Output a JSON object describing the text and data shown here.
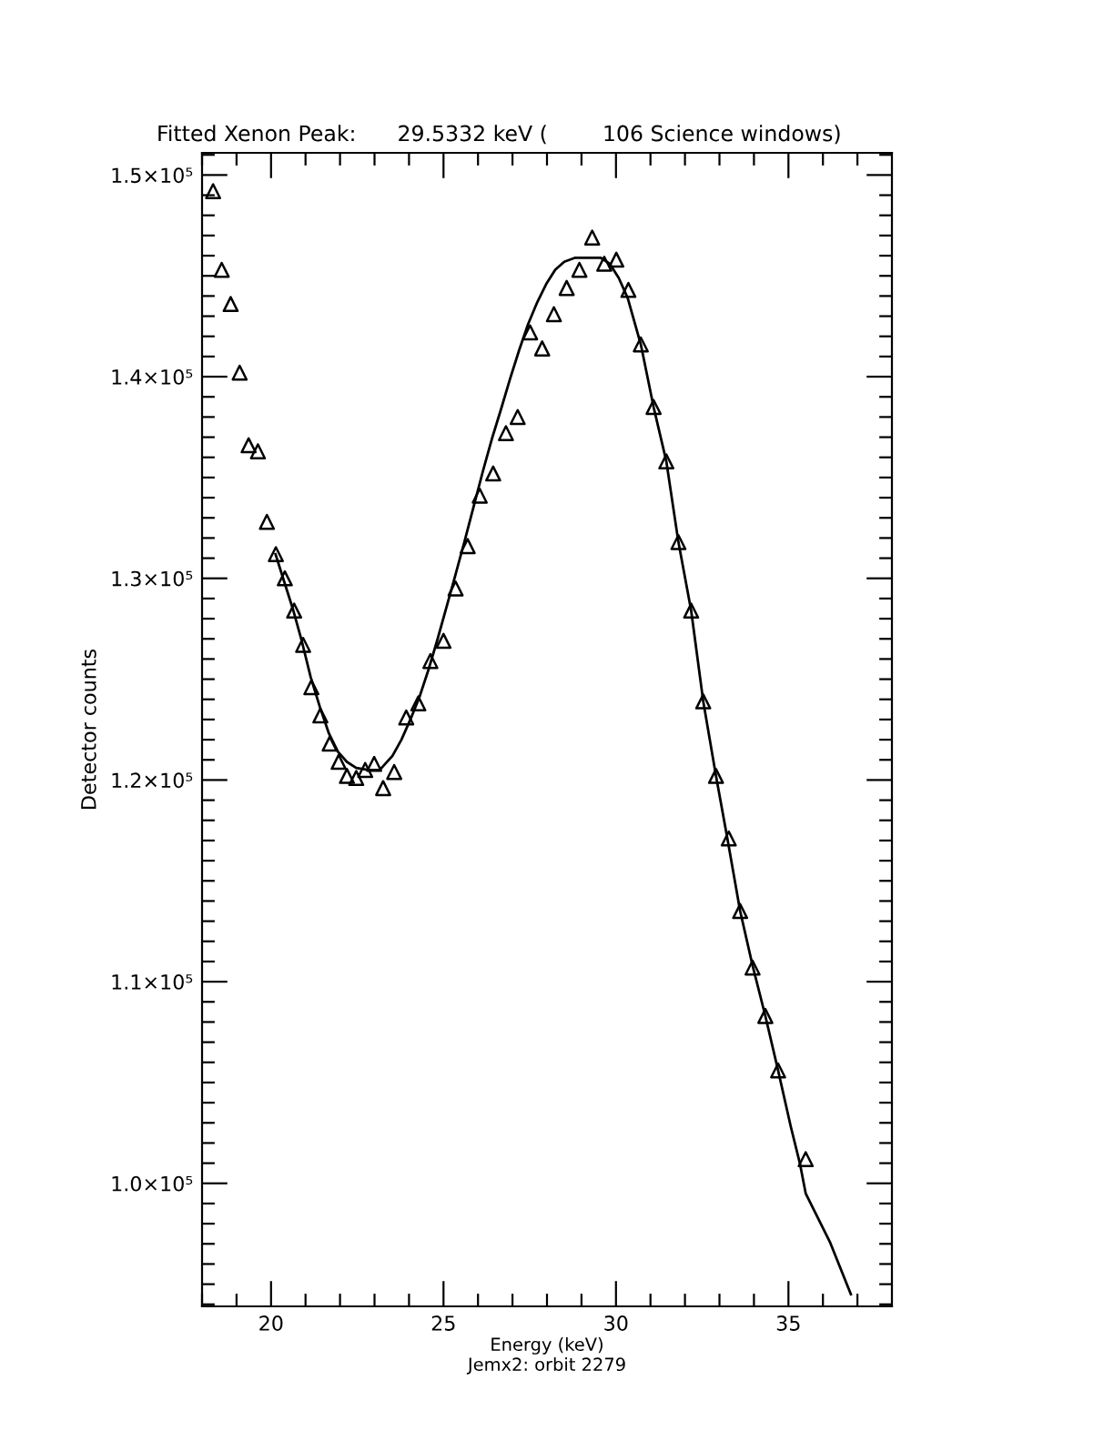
{
  "chart_data": {
    "type": "scatter",
    "title": "Fitted Xenon Peak:      29.5332 keV (        106 Science windows)",
    "xlabel": "Energy (keV)",
    "ylabel": "Detector counts",
    "annotations": [
      "Jemx2: orbit 2279"
    ],
    "xlim": [
      18,
      38
    ],
    "xticks": [
      {
        "value": 18,
        "label": null
      },
      {
        "value": 19,
        "label": null
      },
      20,
      {
        "value": 21,
        "label": null
      },
      {
        "value": 22,
        "label": null
      },
      {
        "value": 23,
        "label": null
      },
      {
        "value": 24,
        "label": null
      },
      25,
      {
        "value": 26,
        "label": null
      },
      {
        "value": 27,
        "label": null
      },
      {
        "value": 28,
        "label": null
      },
      {
        "value": 29,
        "label": null
      },
      30,
      {
        "value": 31,
        "label": null
      },
      {
        "value": 32,
        "label": null
      },
      {
        "value": 33,
        "label": null
      },
      {
        "value": 34,
        "label": null
      },
      35,
      {
        "value": 36,
        "label": null
      },
      {
        "value": 37,
        "label": null
      }
    ],
    "ylim": [
      93900,
      151100
    ],
    "yticks": [
      {
        "value": 94000,
        "label": null
      },
      {
        "value": 95000,
        "label": null
      },
      {
        "value": 96000,
        "label": null
      },
      {
        "value": 97000,
        "label": null
      },
      {
        "value": 98000,
        "label": null
      },
      {
        "value": 99000,
        "label": null
      },
      {
        "value": 100000,
        "label": "1.0×10⁵"
      },
      {
        "value": 101000,
        "label": null
      },
      {
        "value": 102000,
        "label": null
      },
      {
        "value": 103000,
        "label": null
      },
      {
        "value": 104000,
        "label": null
      },
      {
        "value": 105000,
        "label": null
      },
      {
        "value": 106000,
        "label": null
      },
      {
        "value": 107000,
        "label": null
      },
      {
        "value": 108000,
        "label": null
      },
      {
        "value": 109000,
        "label": null
      },
      {
        "value": 110000,
        "label": "1.1×10⁵"
      },
      {
        "value": 111000,
        "label": null
      },
      {
        "value": 112000,
        "label": null
      },
      {
        "value": 113000,
        "label": null
      },
      {
        "value": 114000,
        "label": null
      },
      {
        "value": 115000,
        "label": null
      },
      {
        "value": 116000,
        "label": null
      },
      {
        "value": 117000,
        "label": null
      },
      {
        "value": 118000,
        "label": null
      },
      {
        "value": 119000,
        "label": null
      },
      {
        "value": 120000,
        "label": "1.2×10⁵"
      },
      {
        "value": 121000,
        "label": null
      },
      {
        "value": 122000,
        "label": null
      },
      {
        "value": 123000,
        "label": null
      },
      {
        "value": 124000,
        "label": null
      },
      {
        "value": 125000,
        "label": null
      },
      {
        "value": 126000,
        "label": null
      },
      {
        "value": 127000,
        "label": null
      },
      {
        "value": 128000,
        "label": null
      },
      {
        "value": 129000,
        "label": null
      },
      {
        "value": 130000,
        "label": "1.3×10⁵"
      },
      {
        "value": 131000,
        "label": null
      },
      {
        "value": 132000,
        "label": null
      },
      {
        "value": 133000,
        "label": null
      },
      {
        "value": 134000,
        "label": null
      },
      {
        "value": 135000,
        "label": null
      },
      {
        "value": 136000,
        "label": null
      },
      {
        "value": 137000,
        "label": null
      },
      {
        "value": 138000,
        "label": null
      },
      {
        "value": 139000,
        "label": null
      },
      {
        "value": 140000,
        "label": "1.4×10⁵"
      },
      {
        "value": 141000,
        "label": null
      },
      {
        "value": 142000,
        "label": null
      },
      {
        "value": 143000,
        "label": null
      },
      {
        "value": 144000,
        "label": null
      },
      {
        "value": 145000,
        "label": null
      },
      {
        "value": 146000,
        "label": null
      },
      {
        "value": 147000,
        "label": null
      },
      {
        "value": 148000,
        "label": null
      },
      {
        "value": 149000,
        "label": null
      },
      {
        "value": 150000,
        "label": "1.5×10⁵"
      },
      {
        "value": 151000,
        "label": null
      }
    ],
    "grid": false,
    "legend": false,
    "series": [
      {
        "marker": "triangle",
        "color": "#000000",
        "x": [
          18.32,
          18.57,
          18.83,
          19.09,
          19.35,
          19.62,
          19.88,
          20.14,
          20.4,
          20.67,
          20.93,
          21.17,
          21.43,
          21.7,
          21.96,
          22.2,
          22.47,
          22.73,
          22.99,
          23.25,
          23.57,
          23.92,
          24.27,
          24.62,
          25.0,
          25.35,
          25.7,
          26.05,
          26.44,
          26.81,
          27.15,
          27.51,
          27.86,
          28.2,
          28.57,
          28.94,
          29.31,
          29.66,
          30.01,
          30.36,
          30.72,
          31.09,
          31.46,
          31.81,
          32.18,
          32.53,
          32.9,
          33.27,
          33.6,
          33.96,
          34.33,
          34.7,
          35.5
        ],
        "values": [
          149200,
          145300,
          143600,
          140200,
          136600,
          136300,
          132800,
          131200,
          130000,
          128400,
          126700,
          124600,
          123200,
          121800,
          120900,
          120200,
          120100,
          120500,
          120800,
          119600,
          120400,
          123100,
          123800,
          125900,
          126900,
          129500,
          131600,
          134100,
          135200,
          137200,
          138000,
          142200,
          141400,
          143100,
          144400,
          145300,
          146900,
          145600,
          145800,
          144300,
          141600,
          138500,
          135800,
          131800,
          128400,
          123900,
          120200,
          117100,
          113500,
          110700,
          108300,
          105600,
          101200
        ]
      },
      {
        "type": "line",
        "marker": "none",
        "line_style": "solid",
        "color": "#000000",
        "x": [
          20.13,
          20.37,
          20.63,
          20.89,
          21.15,
          21.42,
          21.68,
          21.94,
          22.2,
          22.47,
          22.83,
          23.15,
          23.52,
          23.78,
          24.04,
          24.3,
          24.57,
          24.83,
          25.09,
          25.35,
          25.62,
          25.88,
          26.14,
          26.4,
          26.67,
          26.93,
          27.19,
          27.45,
          27.72,
          27.98,
          28.24,
          28.5,
          28.82,
          29.55,
          29.82,
          30.08,
          30.34,
          30.72,
          31.09,
          31.46,
          31.81,
          32.18,
          32.53,
          32.9,
          33.23,
          33.6,
          33.96,
          34.33,
          34.7,
          35.07,
          35.33,
          35.5,
          36.2,
          36.81
        ],
        "values": [
          131200,
          129900,
          128500,
          126900,
          125100,
          123600,
          122300,
          121400,
          120900,
          120600,
          120500,
          120500,
          121200,
          122000,
          123000,
          124100,
          125500,
          127000,
          128600,
          130200,
          131900,
          133600,
          135300,
          136900,
          138400,
          139900,
          141300,
          142600,
          143700,
          144600,
          145300,
          145700,
          145900,
          145900,
          145600,
          144900,
          143900,
          141600,
          138500,
          135800,
          131800,
          128400,
          123900,
          120200,
          117100,
          113500,
          110800,
          108300,
          105600,
          102800,
          101000,
          99500,
          97100,
          94500
        ]
      }
    ]
  }
}
